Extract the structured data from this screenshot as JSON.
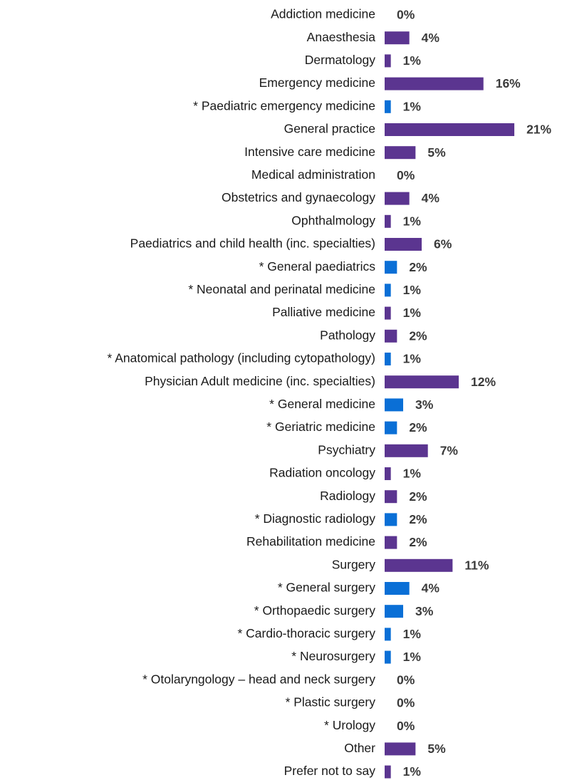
{
  "chart_data": {
    "type": "bar",
    "orientation": "horizontal",
    "categories": [
      "Addiction medicine",
      "Anaesthesia",
      "Dermatology",
      "Emergency medicine",
      "* Paediatric emergency medicine",
      "General practice",
      "Intensive care medicine",
      "Medical administration",
      "Obstetrics and gynaecology",
      "Ophthalmology",
      "Paediatrics and child health (inc. specialties)",
      "* General paediatrics",
      "* Neonatal and perinatal medicine",
      "Palliative medicine",
      "Pathology",
      "* Anatomical pathology (including cytopathology)",
      "Physician Adult medicine (inc. specialties)",
      "* General medicine",
      "* Geriatric medicine",
      "Psychiatry",
      "Radiation oncology",
      "Radiology",
      "* Diagnostic radiology",
      "Rehabilitation medicine",
      "Surgery",
      "* General surgery",
      "* Orthopaedic surgery",
      "* Cardio-thoracic surgery",
      "* Neurosurgery",
      "* Otolaryngology – head and neck surgery",
      "* Plastic surgery",
      "* Urology",
      "Other",
      "Prefer not to say"
    ],
    "values": [
      0,
      4,
      1,
      16,
      1,
      21,
      5,
      0,
      4,
      1,
      6,
      2,
      1,
      1,
      2,
      1,
      12,
      3,
      2,
      7,
      1,
      2,
      2,
      2,
      11,
      4,
      3,
      1,
      1,
      0,
      0,
      0,
      5,
      1
    ],
    "value_labels": [
      "0%",
      "4%",
      "1%",
      "16%",
      "1%",
      "21%",
      "5%",
      "0%",
      "4%",
      "1%",
      "6%",
      "2%",
      "1%",
      "1%",
      "2%",
      "1%",
      "12%",
      "3%",
      "2%",
      "7%",
      "1%",
      "2%",
      "2%",
      "2%",
      "11%",
      "4%",
      "3%",
      "1%",
      "1%",
      "0%",
      "0%",
      "0%",
      "5%",
      "1%"
    ],
    "colors": [
      "#5b3590",
      "#5b3590",
      "#5b3590",
      "#5b3590",
      "#0a6fd6",
      "#5b3590",
      "#5b3590",
      "#5b3590",
      "#5b3590",
      "#5b3590",
      "#5b3590",
      "#0a6fd6",
      "#0a6fd6",
      "#5b3590",
      "#5b3590",
      "#0a6fd6",
      "#5b3590",
      "#0a6fd6",
      "#0a6fd6",
      "#5b3590",
      "#5b3590",
      "#5b3590",
      "#0a6fd6",
      "#5b3590",
      "#5b3590",
      "#0a6fd6",
      "#0a6fd6",
      "#0a6fd6",
      "#0a6fd6",
      "#0a6fd6",
      "#0a6fd6",
      "#0a6fd6",
      "#5b3590",
      "#5b3590"
    ]
  }
}
